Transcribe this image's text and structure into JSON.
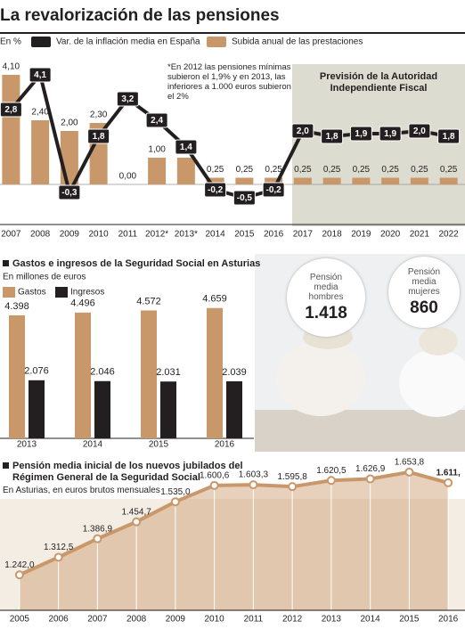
{
  "chart_data": [
    {
      "type": "combo",
      "title": "La revalorización de las pensiones",
      "subtitle": "En %",
      "note": "*En 2012 las pensiones mínimas subieron el 1,9% y en 2013, las inferiores a 1.000 euros subieron el 2%",
      "forecast_label": "Previsión de la Autoridad Independiente Fiscal",
      "categories": [
        "2007",
        "2008",
        "2009",
        "2010",
        "2011",
        "2012*",
        "2013*",
        "2014",
        "2015",
        "2016",
        "2017",
        "2018",
        "2019",
        "2020",
        "2021",
        "2022"
      ],
      "series": [
        {
          "name": "Var. de la inflación media en España",
          "type": "line",
          "color": "#231f20",
          "values": [
            2.8,
            4.1,
            -0.3,
            1.8,
            3.2,
            2.4,
            1.4,
            -0.2,
            -0.5,
            -0.2,
            2.0,
            1.8,
            1.9,
            1.9,
            2.0,
            1.8
          ],
          "value_labels": [
            "2,8",
            "4,1",
            "-0,3",
            "1,8",
            "3,2",
            "2,4",
            "1,4",
            "-0,2",
            "-0,5",
            "-0,2",
            "2,0",
            "1,8",
            "1,9",
            "1,9",
            "2,0",
            "1,8"
          ]
        },
        {
          "name": "Subida anual de las prestaciones",
          "type": "bar",
          "color": "#c9986a",
          "values": [
            4.1,
            2.4,
            2.0,
            2.3,
            0.0,
            1.0,
            1.0,
            0.25,
            0.25,
            0.25,
            0.25,
            0.25,
            0.25,
            0.25,
            0.25,
            0.25
          ],
          "value_labels": [
            "4,10",
            "2,40",
            "2,00",
            "2,30",
            "0,00",
            "1,00",
            "1,00",
            "0,25",
            "0,25",
            "0,25",
            "0,25",
            "0,25",
            "0,25",
            "0,25",
            "0,25",
            "0,25"
          ]
        }
      ],
      "ylim": [
        -0.7,
        4.5
      ]
    },
    {
      "type": "bar",
      "title": "Gastos e ingresos de la Seguridad Social en Asturias",
      "subtitle": "En millones de euros",
      "categories": [
        "2013",
        "2014",
        "2015",
        "2016"
      ],
      "series": [
        {
          "name": "Gastos",
          "color": "#c9986a",
          "values": [
            4398,
            4496,
            4572,
            4659
          ],
          "value_labels": [
            "4.398",
            "4.496",
            "4.572",
            "4.659"
          ]
        },
        {
          "name": "Ingresos",
          "color": "#231f20",
          "values": [
            2076,
            2046,
            2031,
            2039
          ],
          "value_labels": [
            "2.076",
            "2.046",
            "2.031",
            "2.039"
          ]
        }
      ],
      "ylim": [
        0,
        5000
      ]
    },
    {
      "type": "area",
      "title": "Pensión media inicial de los nuevos jubilados del Régimen General de la Seguridad Social",
      "subtitle": "En Asturias, en euros brutos mensuales",
      "categories": [
        "2005",
        "2006",
        "2007",
        "2008",
        "2009",
        "2010",
        "2011",
        "2012",
        "2013",
        "2014",
        "2015",
        "2016"
      ],
      "color": "#c9986a",
      "values": [
        1242.0,
        1312.5,
        1386.9,
        1454.7,
        1535.0,
        1600.6,
        1603.3,
        1595.8,
        1620.5,
        1626.9,
        1653.8,
        1611
      ],
      "value_labels": [
        "1.242,0",
        "1.312,5",
        "1.386,9",
        "1.454,7",
        "1.535,0",
        "1.600,6",
        "1.603,3",
        "1.595,8",
        "1.620,5",
        "1.626,9",
        "1.653,8",
        "1.611,"
      ],
      "ylim": [
        1100,
        1700
      ]
    }
  ],
  "pension_cards": [
    {
      "label": "Pensión media hombres",
      "value": "1.418"
    },
    {
      "label": "Pensión media mujeres",
      "value": "860"
    }
  ]
}
